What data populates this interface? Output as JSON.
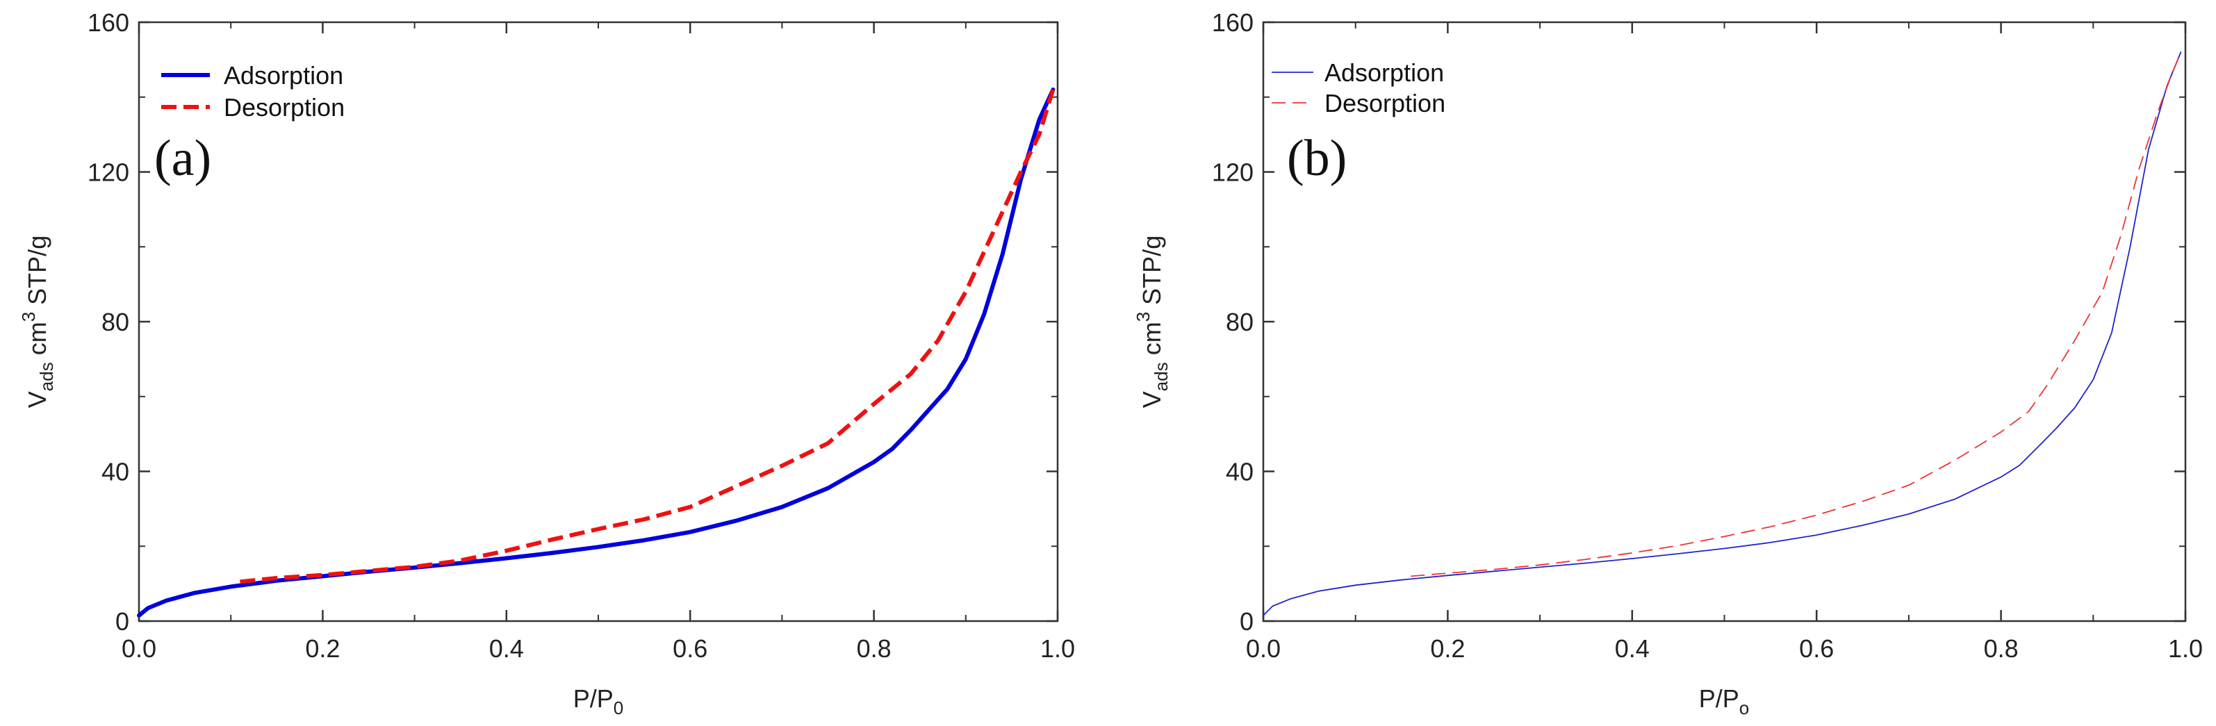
{
  "chart_data": [
    {
      "type": "line",
      "panel_label": "(a)",
      "xlabel": "P/P",
      "xlabel_sub": "0",
      "ylabel_main": "V",
      "ylabel_sub": "ads",
      "ylabel_mid": " cm",
      "ylabel_sup": "3",
      "ylabel_end": " STP/g",
      "xlim": [
        0,
        1
      ],
      "ylim": [
        0,
        160
      ],
      "x_ticks": [
        "0.0",
        "0.2",
        "0.4",
        "0.6",
        "0.8",
        "1.0"
      ],
      "y_ticks": [
        "0",
        "40",
        "80",
        "120",
        "160"
      ],
      "legend_position": "top-left",
      "series": [
        {
          "name": "Adsorption",
          "color": "#0000dd",
          "style": "solid",
          "weight": "thick",
          "x": [
            0.0,
            0.01,
            0.03,
            0.06,
            0.1,
            0.15,
            0.2,
            0.25,
            0.3,
            0.35,
            0.4,
            0.45,
            0.5,
            0.55,
            0.6,
            0.65,
            0.7,
            0.75,
            0.8,
            0.82,
            0.84,
            0.86,
            0.88,
            0.9,
            0.92,
            0.94,
            0.96,
            0.98,
            0.995
          ],
          "y": [
            1.5,
            3.5,
            5.5,
            7.5,
            9.2,
            10.8,
            12.0,
            13.2,
            14.3,
            15.5,
            16.8,
            18.2,
            19.8,
            21.6,
            23.8,
            26.8,
            30.5,
            35.5,
            42.5,
            46.0,
            51.0,
            56.5,
            62.0,
            70.0,
            82.0,
            98.0,
            118.0,
            134.0,
            142.0
          ]
        },
        {
          "name": "Desorption",
          "color": "#ee1111",
          "style": "dashed",
          "weight": "thick",
          "x": [
            0.11,
            0.15,
            0.2,
            0.25,
            0.3,
            0.35,
            0.4,
            0.45,
            0.5,
            0.55,
            0.6,
            0.65,
            0.7,
            0.75,
            0.8,
            0.84,
            0.87,
            0.9,
            0.93,
            0.96,
            0.98,
            0.995
          ],
          "y": [
            10.5,
            11.5,
            12.3,
            13.4,
            14.5,
            16.2,
            18.8,
            21.8,
            24.6,
            27.2,
            30.5,
            36.0,
            41.5,
            47.5,
            58.0,
            66.0,
            75.0,
            88.0,
            104.0,
            120.0,
            130.0,
            142.0
          ]
        }
      ]
    },
    {
      "type": "line",
      "panel_label": "(b)",
      "xlabel": "P/P",
      "xlabel_sub": "o",
      "ylabel_main": "V",
      "ylabel_sub": "ads",
      "ylabel_mid": " cm",
      "ylabel_sup": "3",
      "ylabel_end": " STP/g",
      "xlim": [
        0,
        1
      ],
      "ylim": [
        0,
        160
      ],
      "x_ticks": [
        "0.0",
        "0.2",
        "0.4",
        "0.6",
        "0.8",
        "1.0"
      ],
      "y_ticks": [
        "0",
        "40",
        "80",
        "120",
        "160"
      ],
      "legend_position": "top-left",
      "series": [
        {
          "name": "Adsorption",
          "color": "#2222cc",
          "style": "solid",
          "weight": "thin",
          "x": [
            0.0,
            0.01,
            0.03,
            0.06,
            0.1,
            0.15,
            0.2,
            0.25,
            0.3,
            0.35,
            0.4,
            0.45,
            0.5,
            0.55,
            0.6,
            0.65,
            0.7,
            0.75,
            0.8,
            0.82,
            0.84,
            0.86,
            0.88,
            0.9,
            0.92,
            0.94,
            0.96,
            0.98,
            0.995
          ],
          "y": [
            1.5,
            4.0,
            6.0,
            8.0,
            9.6,
            11.0,
            12.2,
            13.3,
            14.4,
            15.5,
            16.7,
            18.0,
            19.4,
            21.0,
            23.0,
            25.6,
            28.6,
            32.6,
            38.5,
            41.6,
            46.5,
            51.5,
            57.0,
            64.5,
            77.0,
            100.0,
            126.0,
            143.0,
            152.0
          ]
        },
        {
          "name": "Desorption",
          "color": "#ee3333",
          "style": "dashed",
          "weight": "thin",
          "x": [
            0.16,
            0.2,
            0.25,
            0.3,
            0.35,
            0.4,
            0.45,
            0.5,
            0.55,
            0.6,
            0.65,
            0.7,
            0.75,
            0.8,
            0.83,
            0.85,
            0.88,
            0.91,
            0.93,
            0.95,
            0.97,
            0.985,
            0.995
          ],
          "y": [
            12.0,
            12.8,
            13.8,
            15.0,
            16.5,
            18.2,
            20.2,
            22.6,
            25.2,
            28.3,
            32.0,
            36.3,
            43.0,
            50.5,
            56.0,
            63.0,
            75.0,
            88.0,
            103.0,
            121.0,
            136.0,
            146.0,
            152.0
          ]
        }
      ]
    }
  ]
}
